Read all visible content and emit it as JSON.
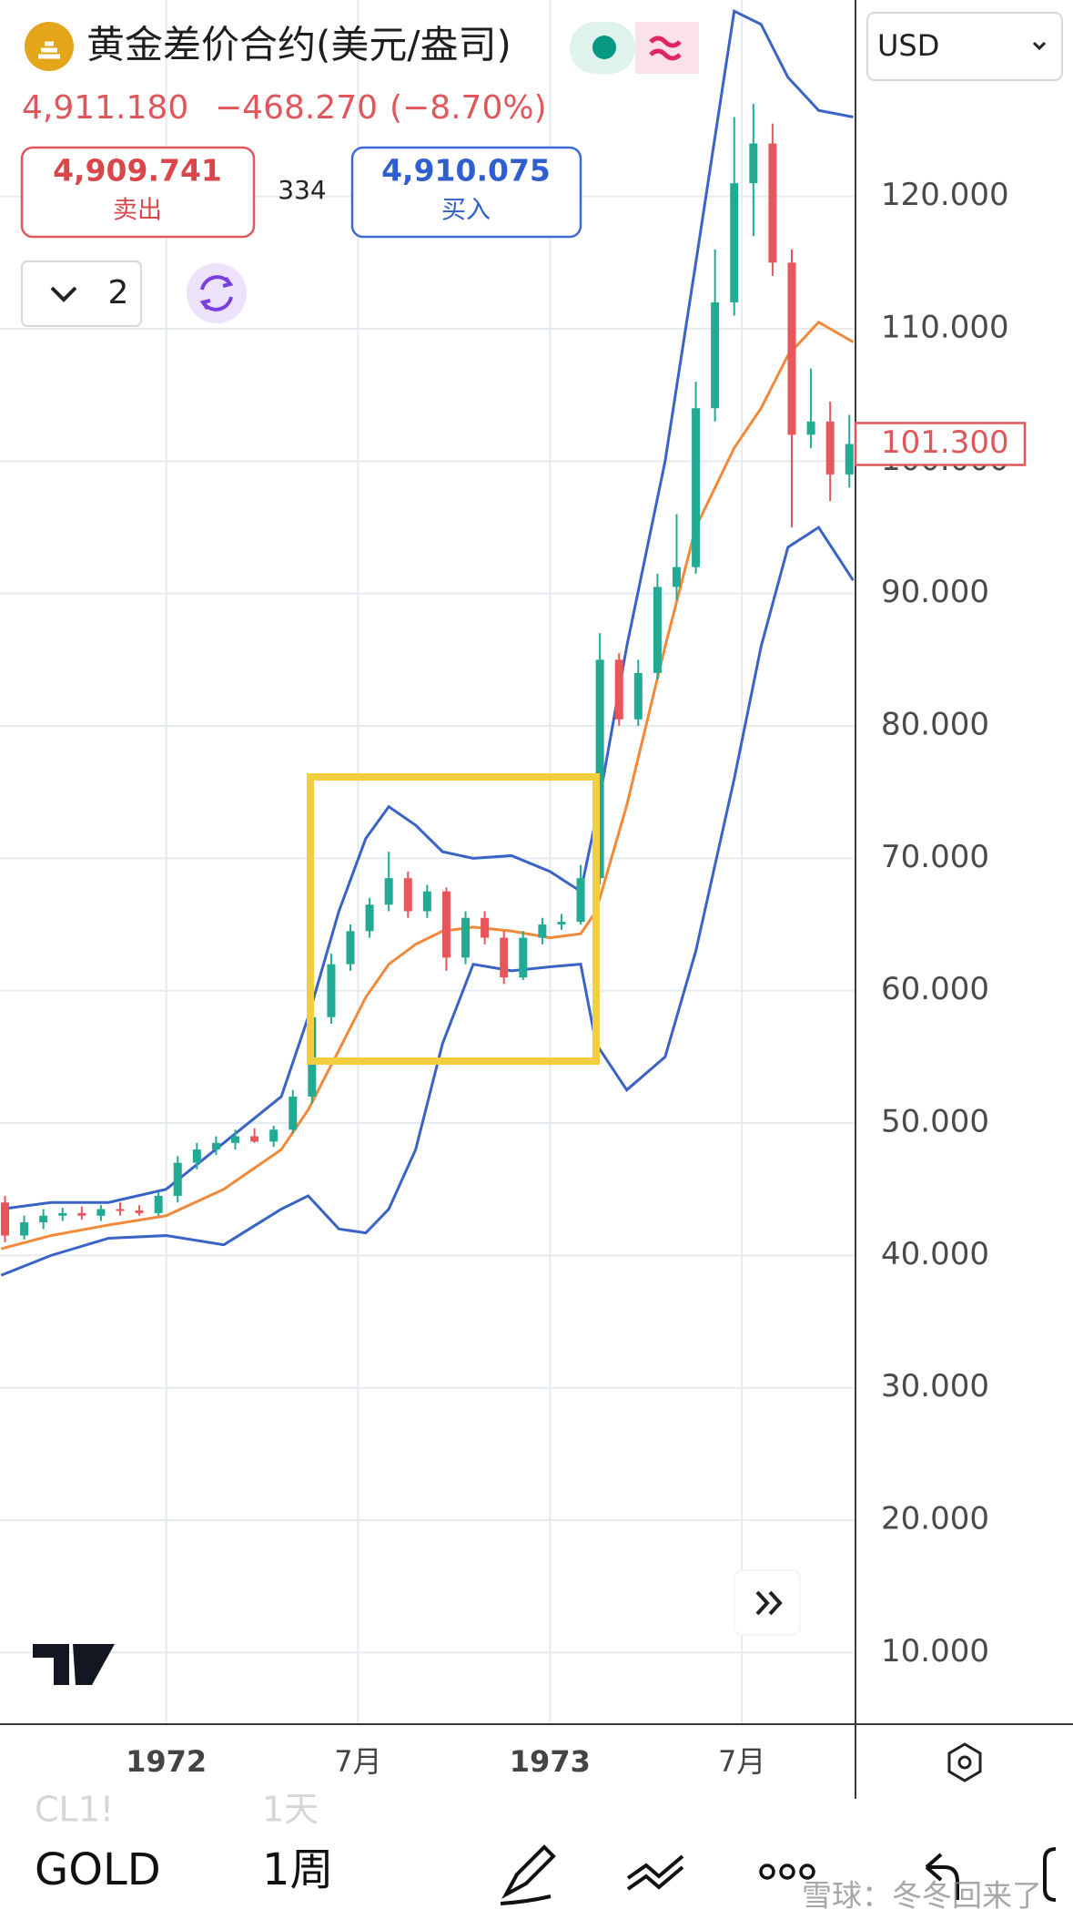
{
  "header": {
    "title": "黄金差价合约(美元/盎司)",
    "price": "4,911.180",
    "change": "−468.270",
    "change_pct": "(−8.70%)",
    "sell_price": "4,909.741",
    "sell_label": "卖出",
    "spread": "334",
    "buy_price": "4,910.075",
    "buy_label": "买入",
    "layout_count": "2",
    "currency": "USD"
  },
  "chart_data": {
    "type": "candlestick",
    "xlim": [
      1971.567,
      1973.796
    ],
    "ylim": [
      4.59,
      134.84
    ],
    "xticks": [
      1972,
      {
        "value": 1972.5,
        "label": "7月"
      },
      1973,
      {
        "value": 1973.5,
        "label": "7月"
      }
    ],
    "yticks": [
      {
        "value": 10,
        "label": "10.000"
      },
      {
        "value": 20,
        "label": "20.000"
      },
      {
        "value": 30,
        "label": "30.000"
      },
      {
        "value": 40,
        "label": "40.000"
      },
      {
        "value": 50,
        "label": "50.000"
      },
      {
        "value": 60,
        "label": "60.000"
      },
      {
        "value": 70,
        "label": "70.000"
      },
      {
        "value": 80,
        "label": "80.000"
      },
      {
        "value": 90,
        "label": "90.000"
      },
      {
        "value": 100,
        "label": "100.000"
      },
      {
        "value": 110,
        "label": "110.000"
      },
      {
        "value": 120,
        "label": "120.000"
      }
    ],
    "grid": true,
    "up_color": "#22ab94",
    "down_color": "#e8565b",
    "candles": {
      "x": [
        1971.58,
        1971.63,
        1971.68,
        1971.73,
        1971.78,
        1971.83,
        1971.88,
        1971.93,
        1971.98,
        1972.03,
        1972.08,
        1972.13,
        1972.18,
        1972.23,
        1972.28,
        1972.33,
        1972.38,
        1972.43,
        1972.48,
        1972.53,
        1972.58,
        1972.63,
        1972.68,
        1972.73,
        1972.78,
        1972.83,
        1972.88,
        1972.93,
        1972.98,
        1973.03,
        1973.08,
        1973.13,
        1973.18,
        1973.23,
        1973.28,
        1973.33,
        1973.38,
        1973.43,
        1973.48,
        1973.53,
        1973.58,
        1973.63,
        1973.68,
        1973.73,
        1973.78
      ],
      "open": [
        44,
        41.5,
        42.5,
        43,
        43.2,
        43,
        43.5,
        43.4,
        43.2,
        44.5,
        47,
        48,
        48.5,
        49,
        48.6,
        49.5,
        52,
        58,
        62,
        64.5,
        66.5,
        68.5,
        66,
        67.5,
        62.5,
        65.5,
        64,
        61,
        64,
        65,
        65.2,
        68.5,
        85,
        80.5,
        84,
        90.5,
        92,
        104,
        112,
        121,
        124,
        115,
        102,
        103,
        99
      ],
      "high": [
        44.5,
        43,
        43.5,
        43.6,
        43.7,
        43.8,
        44,
        43.8,
        44.8,
        47.5,
        48.5,
        49,
        49.5,
        49.6,
        49.8,
        52.5,
        59,
        62.8,
        65,
        67,
        70.5,
        69,
        68,
        67.8,
        66,
        66,
        64.5,
        64.5,
        65.5,
        65.8,
        69.5,
        87,
        85.5,
        85,
        91.5,
        96,
        106,
        116,
        126,
        127,
        125.5,
        116,
        107,
        104.5,
        103.5
      ],
      "low": [
        41,
        41.2,
        42,
        42.6,
        42.7,
        42.6,
        43,
        43,
        43,
        44,
        46.5,
        47.6,
        48,
        48.5,
        48.2,
        49.2,
        51.5,
        57.5,
        61.5,
        64,
        66,
        65.5,
        65.5,
        61.5,
        62,
        63.5,
        60.5,
        60.8,
        63.5,
        64.6,
        65,
        68,
        80,
        80,
        83.5,
        89.5,
        91.5,
        103,
        111,
        117,
        114,
        95,
        101,
        97,
        98
      ],
      "close": [
        41.5,
        42.5,
        43,
        43.2,
        43,
        43.5,
        43.4,
        43.2,
        44.5,
        47,
        48,
        48.5,
        49,
        48.6,
        49.5,
        52,
        58,
        62,
        64.5,
        66.5,
        68.5,
        66,
        67.5,
        62.5,
        65.5,
        64,
        61,
        64,
        65,
        65.2,
        68.5,
        85,
        80.5,
        84,
        90.5,
        92,
        104,
        112,
        121,
        124,
        115,
        102,
        103,
        99,
        101.3
      ]
    },
    "bands": {
      "x": [
        1971.57,
        1971.7,
        1971.85,
        1972.0,
        1972.15,
        1972.3,
        1972.37,
        1972.45,
        1972.52,
        1972.58,
        1972.65,
        1972.72,
        1972.8,
        1972.9,
        1973.0,
        1973.08,
        1973.12,
        1973.2,
        1973.3,
        1973.38,
        1973.48,
        1973.55,
        1973.62,
        1973.7,
        1973.79
      ],
      "upper": [
        43.5,
        44,
        44,
        45,
        48.5,
        52,
        58,
        66,
        71.5,
        73.9,
        72.5,
        70.5,
        70,
        70.2,
        69,
        67.5,
        73,
        86,
        100,
        115,
        134,
        133,
        129,
        126.5,
        126
      ],
      "middle": [
        40.5,
        41.5,
        42.3,
        43,
        45,
        48,
        51,
        55.5,
        59.5,
        62,
        63.5,
        64.5,
        64.8,
        64.5,
        64,
        64.3,
        66,
        74,
        86,
        95,
        101,
        104,
        108,
        110.5,
        109
      ],
      "lower": [
        38.5,
        40,
        41.3,
        41.5,
        40.8,
        43.5,
        44.5,
        42,
        41.7,
        43.5,
        48,
        56,
        62,
        61.5,
        61.8,
        62,
        56,
        52.5,
        55,
        63,
        76,
        86,
        93.5,
        95,
        91
      ],
      "band_color": "#3a63c6",
      "middle_color": "#f0893a"
    },
    "last_price": {
      "value": 101.3,
      "label": "101.300"
    }
  },
  "toolbar": {
    "symbol": "GOLD",
    "interval": "1周",
    "prev_symbol": "CL1!",
    "prev_interval": "1天",
    "watermark": "雪球：冬冬回来了"
  }
}
